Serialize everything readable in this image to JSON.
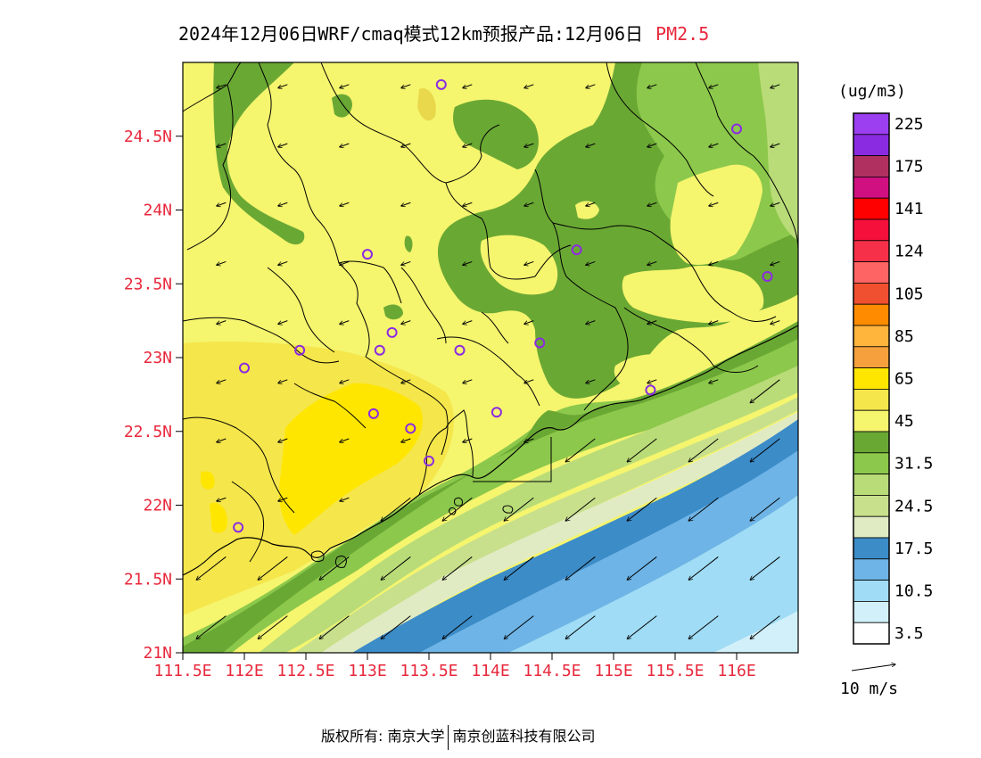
{
  "title": {
    "main": "2024年12月06日WRF/cmaq模式12km预报产品:12月06日",
    "species": "PM2.5"
  },
  "colors": {
    "axis_label": "#e8283c",
    "boundary": "#000000",
    "monitor": "#8b2be2"
  },
  "map": {
    "lon_ticks": [
      "111.5E",
      "112E",
      "112.5E",
      "113E",
      "113.5E",
      "114E",
      "114.5E",
      "115E",
      "115.5E",
      "116E"
    ],
    "lat_ticks": [
      "21N",
      "21.5N",
      "22N",
      "22.5N",
      "23N",
      "23.5N",
      "24N",
      "24.5N"
    ],
    "lon_range": [
      111.5,
      116.5
    ],
    "lat_range": [
      21.0,
      25.0
    ],
    "wind_direction": "northeasterly",
    "monitor_sites": [
      [
        113.6,
        24.85
      ],
      [
        116.0,
        24.55
      ],
      [
        113.0,
        23.7
      ],
      [
        114.7,
        23.73
      ],
      [
        116.25,
        23.55
      ],
      [
        113.2,
        23.17
      ],
      [
        113.1,
        23.05
      ],
      [
        112.45,
        23.05
      ],
      [
        112.0,
        22.93
      ],
      [
        113.75,
        23.05
      ],
      [
        114.4,
        23.1
      ],
      [
        115.3,
        22.78
      ],
      [
        113.05,
        22.62
      ],
      [
        113.35,
        22.52
      ],
      [
        114.05,
        22.63
      ],
      [
        113.5,
        22.3
      ],
      [
        111.95,
        21.85
      ]
    ]
  },
  "legend": {
    "unit": "(ug/m3)",
    "levels": [
      {
        "label": "225",
        "color": "#9b3ff0"
      },
      {
        "label": "",
        "color": "#8a2be2"
      },
      {
        "label": "175",
        "color": "#b03060"
      },
      {
        "label": "",
        "color": "#d01080"
      },
      {
        "label": "141",
        "color": "#ff0000"
      },
      {
        "label": "",
        "color": "#f5103c"
      },
      {
        "label": "124",
        "color": "#f53048"
      },
      {
        "label": "",
        "color": "#ff6464"
      },
      {
        "label": "105",
        "color": "#f05030"
      },
      {
        "label": "",
        "color": "#ff8c00"
      },
      {
        "label": "85",
        "color": "#ffb43c"
      },
      {
        "label": "",
        "color": "#f5a03c"
      },
      {
        "label": "65",
        "color": "#ffe600"
      },
      {
        "label": "",
        "color": "#f5e64b"
      },
      {
        "label": "45",
        "color": "#f5f56e"
      },
      {
        "label": "",
        "color": "#6aa834"
      },
      {
        "label": "31.5",
        "color": "#8cc84b"
      },
      {
        "label": "",
        "color": "#b9dc78"
      },
      {
        "label": "24.5",
        "color": "#c8e08c"
      },
      {
        "label": "",
        "color": "#e1ebc3"
      },
      {
        "label": "17.5",
        "color": "#3c8cc8"
      },
      {
        "label": "",
        "color": "#6eb4e6"
      },
      {
        "label": "10.5",
        "color": "#a0dcf5"
      },
      {
        "label": "",
        "color": "#d2f0fa"
      },
      {
        "label": "3.5",
        "color": "#ffffff"
      }
    ],
    "wind_ref": "10 m/s"
  },
  "copyright": {
    "left": "版权所有: 南京大学",
    "right": "南京创蓝科技有限公司"
  }
}
